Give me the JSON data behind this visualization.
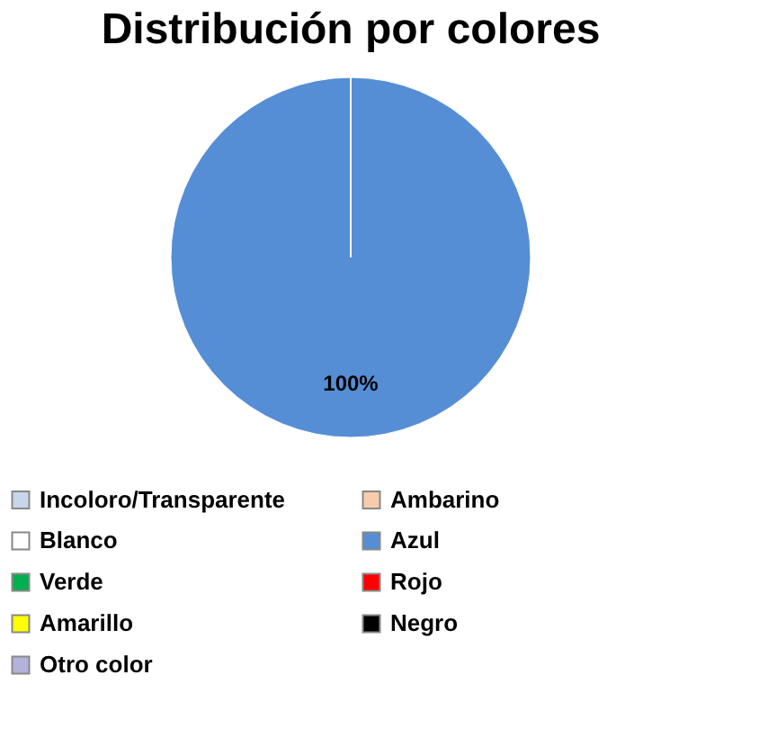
{
  "chart_data": {
    "type": "pie",
    "title": "Distribución por colores",
    "categories": [
      "Incoloro/Transparente",
      "Ambarino",
      "Blanco",
      "Azul",
      "Verde",
      "Rojo",
      "Amarillo",
      "Negro",
      "Otro color"
    ],
    "values": [
      0,
      0,
      0,
      100,
      0,
      0,
      0,
      0,
      0
    ],
    "colors": [
      "#c9d6e8",
      "#f8cbad",
      "#ffffff",
      "#558ed5",
      "#00b050",
      "#ff0000",
      "#ffff00",
      "#000000",
      "#b3b3d9"
    ],
    "value_labels": [
      null,
      null,
      null,
      "100%",
      null,
      null,
      null,
      null,
      null
    ],
    "legend": "bottom"
  }
}
